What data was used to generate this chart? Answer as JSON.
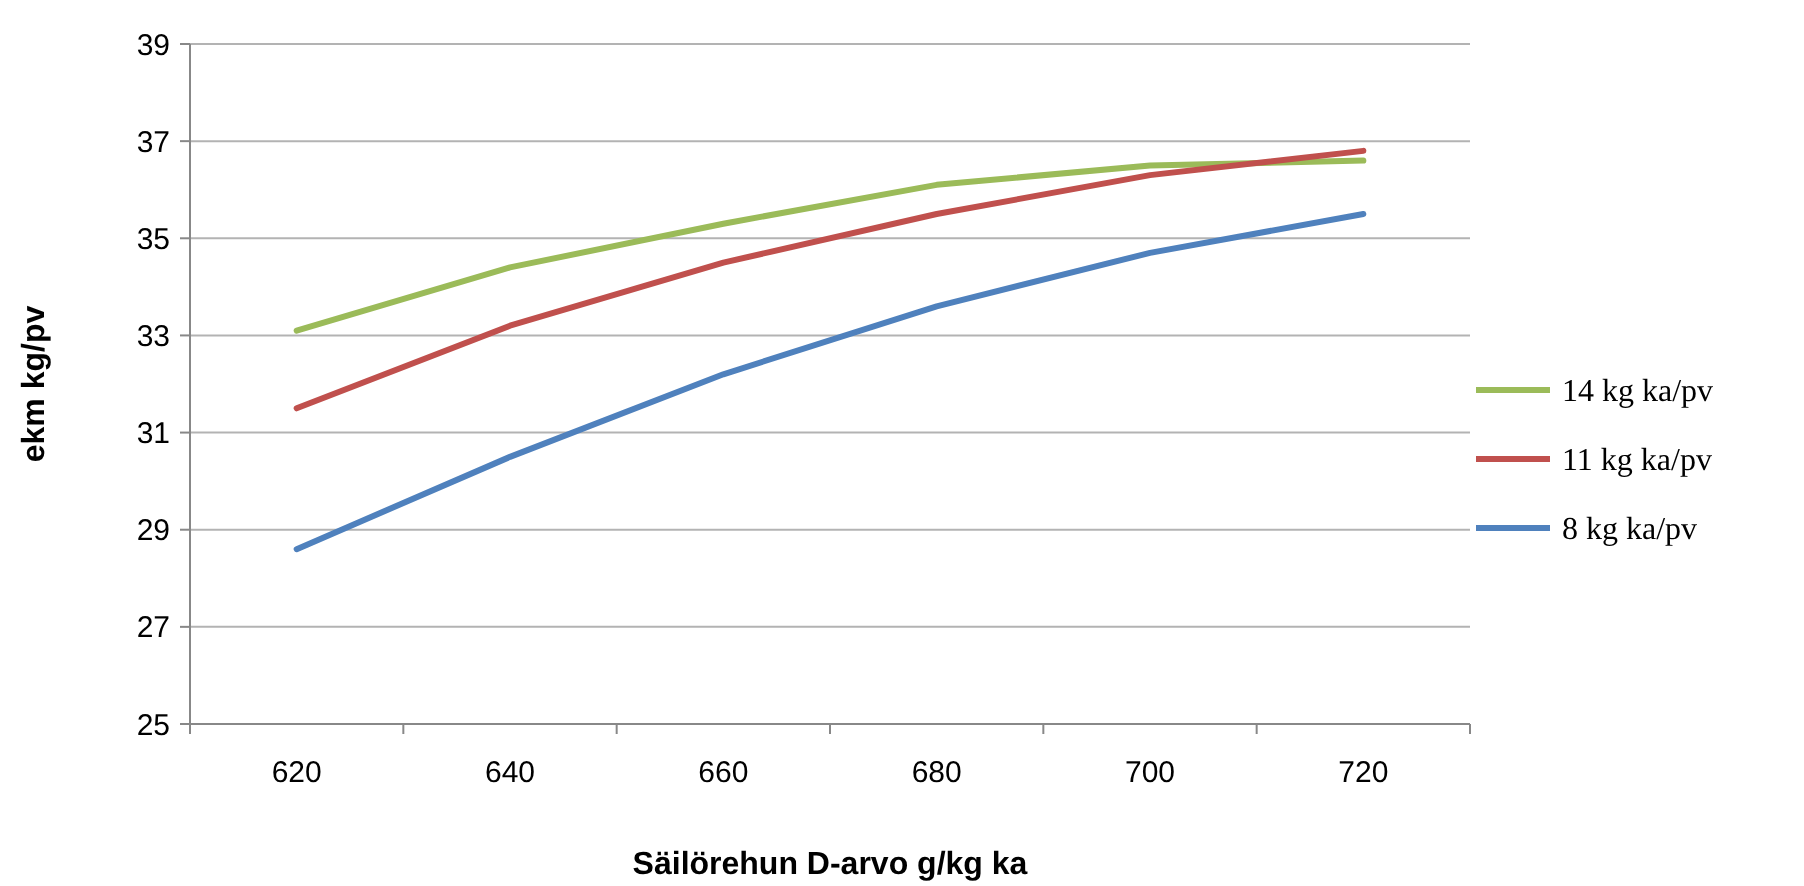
{
  "chart_data": {
    "type": "line",
    "xlabel": "Säilörehun D-arvo g/kg ka",
    "ylabel": "ekm kg/pv",
    "categories": [
      "620",
      "640",
      "660",
      "680",
      "700",
      "720"
    ],
    "series": [
      {
        "name": "14 kg ka/pv",
        "color": "#9bbb59",
        "values": [
          33.1,
          34.4,
          35.3,
          36.1,
          36.5,
          36.6
        ]
      },
      {
        "name": "11 kg ka/pv",
        "color": "#c0504d",
        "values": [
          31.5,
          33.2,
          34.5,
          35.5,
          36.3,
          36.8
        ]
      },
      {
        "name": "8 kg ka/pv",
        "color": "#4f81bd",
        "values": [
          28.6,
          30.5,
          32.2,
          33.6,
          34.7,
          35.5
        ]
      }
    ],
    "ylim": [
      25,
      39
    ],
    "yticks": [
      25,
      27,
      29,
      31,
      33,
      35,
      37,
      39
    ],
    "grid": "y",
    "legend": "right",
    "marker": "none",
    "line_style": "solid"
  }
}
